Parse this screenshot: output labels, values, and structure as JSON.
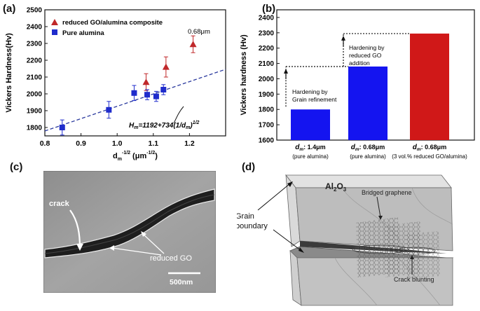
{
  "panels": {
    "a": "(a)",
    "b": "(b)",
    "c": "(c)",
    "d": "(d)"
  },
  "chart_data": [
    {
      "type": "scatter",
      "panel": "a",
      "title": "",
      "ylabel": "Vickers Hardness(Hv)",
      "xlabel_main": "d",
      "xlabel_sub": "m",
      "xlabel_exp": "-1/2",
      "xlabel_unit": "(μm",
      "xlabel_unit_exp": "-1/2",
      "xlabel_close": ")",
      "xlim": [
        0.8,
        1.3
      ],
      "ylim": [
        1750,
        2500
      ],
      "xticks": [
        "0.8",
        "0.9",
        "1.0",
        "1.1",
        "1.2"
      ],
      "xtick_values": [
        0.8,
        0.9,
        1.0,
        1.1,
        1.2
      ],
      "yticks": [
        "1800",
        "1900",
        "2000",
        "2100",
        "2200",
        "2300",
        "2400",
        "2500"
      ],
      "ytick_values": [
        1800,
        1900,
        2000,
        2100,
        2200,
        2300,
        2400,
        2500
      ],
      "legend_position": "top-left",
      "series": [
        {
          "name": "reduced GO/alumina composite",
          "color": "#c0282a",
          "marker": "triangle",
          "x": [
            1.08,
            1.135,
            1.21
          ],
          "y": [
            2070,
            2160,
            2295
          ],
          "err": [
            50,
            60,
            50
          ]
        },
        {
          "name": "Pure alumina",
          "color": "#1f2ccc",
          "marker": "square",
          "x": [
            0.848,
            0.977,
            1.047,
            1.083,
            1.108,
            1.128
          ],
          "y": [
            1800,
            1905,
            2005,
            1995,
            1985,
            2025
          ],
          "err": [
            45,
            50,
            45,
            30,
            30,
            30
          ]
        }
      ],
      "fit_line": {
        "intercept": 1192,
        "slope": 734,
        "color": "#2b3a9e"
      },
      "annotation_point": "0.68μm",
      "equation": "H",
      "equation_sub": "m",
      "equation_body": "=1192+734(1/d",
      "equation_sub2": "m",
      "equation_close": ")",
      "equation_exp": "1/2"
    },
    {
      "type": "bar",
      "panel": "b",
      "ylabel": "Vickers hardness (Hv)",
      "ylim": [
        1600,
        2450
      ],
      "yticks": [
        "1600",
        "1700",
        "1800",
        "1900",
        "2000",
        "2100",
        "2200",
        "2300",
        "2400"
      ],
      "ytick_values": [
        1600,
        1700,
        1800,
        1900,
        2000,
        2100,
        2200,
        2300,
        2400
      ],
      "categories": [
        {
          "d": "d",
          "sub": "m",
          "value_label": ": 1.4μm",
          "desc": "(pure alumina)"
        },
        {
          "d": "d",
          "sub": "m",
          "value_label": ": 0.68μm",
          "desc": "(pure alumina)"
        },
        {
          "d": "d",
          "sub": "m",
          "value_label": ": 0.68μm",
          "desc": "(3 vol.% reduced GO/alumina)"
        }
      ],
      "values": [
        1800,
        2080,
        2295
      ],
      "colors": [
        "#1414f0",
        "#1414f0",
        "#d01818"
      ],
      "annotations": [
        {
          "lines": [
            "Hardening by",
            "Grain refinement"
          ]
        },
        {
          "lines": [
            "Hardening by",
            "reduced GO",
            "addition"
          ]
        }
      ]
    }
  ],
  "micrograph": {
    "crack_label": "crack",
    "go_label": "reduced GO",
    "scale_bar": "500nm"
  },
  "schematic": {
    "material_label": "Al",
    "material_sub1": "2",
    "material_mid": "O",
    "material_sub2": "3",
    "grain_label_line1": "Grain",
    "grain_label_line2": "boundary",
    "bridged_label": "Bridged graphene",
    "blunting_label": "Crack blunting"
  }
}
